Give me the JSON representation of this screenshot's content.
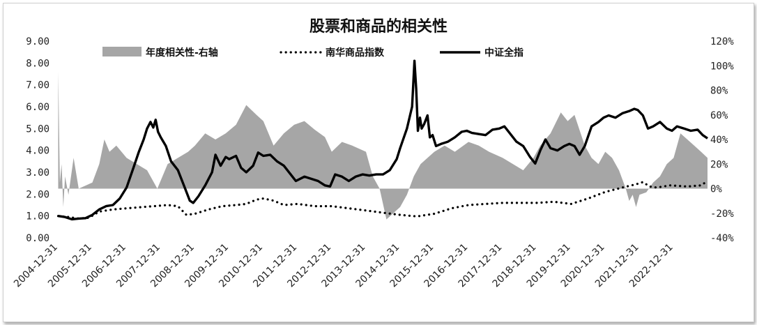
{
  "chart_data": {
    "type": "line",
    "title": "股票和商品的相关性",
    "left_axis": {
      "ylim": [
        0,
        9
      ],
      "tick_labels": [
        "0.00",
        "1.00",
        "2.00",
        "3.00",
        "4.00",
        "5.00",
        "6.00",
        "7.00",
        "8.00",
        "9.00"
      ]
    },
    "right_axis": {
      "ylim": [
        -40,
        120
      ],
      "tick_labels": [
        "-40%",
        "-20%",
        "0%",
        "20%",
        "40%",
        "60%",
        "80%",
        "100%",
        "120%"
      ]
    },
    "x_tick_labels": [
      "2004-12-31",
      "2005-12-31",
      "2006-12-31",
      "2007-12-31",
      "2008-12-31",
      "2009-12-31",
      "2010-12-31",
      "2011-12-31",
      "2012-12-31",
      "2013-12-31",
      "2014-12-31",
      "2015-12-31",
      "2016-12-31",
      "2017-12-31",
      "2018-12-31",
      "2019-12-31",
      "2020-12-31",
      "2021-12-31",
      "2022-12-31"
    ],
    "xlim": [
      2004.99,
      2023.99
    ],
    "grid": false,
    "legend_position": "top",
    "legend": [
      {
        "name": "年度相关性-右轴",
        "style": "area",
        "color": "#a6a6a6",
        "axis": "right"
      },
      {
        "name": "南华商品指数",
        "style": "dotted",
        "color": "#000000",
        "axis": "left"
      },
      {
        "name": "中证全指",
        "style": "solid",
        "color": "#000000",
        "axis": "left"
      }
    ],
    "series": [
      {
        "name": "中证全指",
        "axis": "left",
        "points": [
          [
            2005.0,
            1.0
          ],
          [
            2005.2,
            0.95
          ],
          [
            2005.4,
            0.85
          ],
          [
            2005.6,
            0.88
          ],
          [
            2005.8,
            0.9
          ],
          [
            2006.0,
            1.05
          ],
          [
            2006.2,
            1.3
          ],
          [
            2006.4,
            1.45
          ],
          [
            2006.6,
            1.5
          ],
          [
            2006.8,
            1.8
          ],
          [
            2007.0,
            2.3
          ],
          [
            2007.2,
            3.2
          ],
          [
            2007.35,
            3.9
          ],
          [
            2007.5,
            4.5
          ],
          [
            2007.6,
            5.0
          ],
          [
            2007.7,
            5.3
          ],
          [
            2007.78,
            5.05
          ],
          [
            2007.85,
            5.4
          ],
          [
            2007.92,
            4.85
          ],
          [
            2008.0,
            4.6
          ],
          [
            2008.15,
            4.2
          ],
          [
            2008.3,
            3.5
          ],
          [
            2008.5,
            3.1
          ],
          [
            2008.7,
            2.3
          ],
          [
            2008.85,
            1.7
          ],
          [
            2008.95,
            1.6
          ],
          [
            2009.1,
            1.9
          ],
          [
            2009.3,
            2.4
          ],
          [
            2009.5,
            3.0
          ],
          [
            2009.6,
            3.8
          ],
          [
            2009.75,
            3.3
          ],
          [
            2009.9,
            3.7
          ],
          [
            2010.0,
            3.6
          ],
          [
            2010.2,
            3.75
          ],
          [
            2010.35,
            3.2
          ],
          [
            2010.5,
            3.0
          ],
          [
            2010.7,
            3.3
          ],
          [
            2010.85,
            3.9
          ],
          [
            2011.0,
            3.75
          ],
          [
            2011.2,
            3.8
          ],
          [
            2011.4,
            3.5
          ],
          [
            2011.6,
            3.3
          ],
          [
            2011.8,
            2.9
          ],
          [
            2011.95,
            2.6
          ],
          [
            2012.2,
            2.8
          ],
          [
            2012.4,
            2.7
          ],
          [
            2012.6,
            2.6
          ],
          [
            2012.8,
            2.4
          ],
          [
            2012.95,
            2.35
          ],
          [
            2013.1,
            2.9
          ],
          [
            2013.3,
            2.8
          ],
          [
            2013.5,
            2.6
          ],
          [
            2013.7,
            2.8
          ],
          [
            2013.9,
            2.9
          ],
          [
            2014.1,
            2.85
          ],
          [
            2014.3,
            2.9
          ],
          [
            2014.5,
            2.9
          ],
          [
            2014.7,
            3.1
          ],
          [
            2014.9,
            3.6
          ],
          [
            2015.0,
            4.1
          ],
          [
            2015.2,
            5.0
          ],
          [
            2015.35,
            6.0
          ],
          [
            2015.42,
            8.1
          ],
          [
            2015.47,
            6.8
          ],
          [
            2015.52,
            4.9
          ],
          [
            2015.58,
            5.5
          ],
          [
            2015.63,
            5.0
          ],
          [
            2015.7,
            5.2
          ],
          [
            2015.8,
            5.6
          ],
          [
            2015.87,
            4.6
          ],
          [
            2015.95,
            4.7
          ],
          [
            2016.05,
            4.2
          ],
          [
            2016.2,
            4.3
          ],
          [
            2016.4,
            4.4
          ],
          [
            2016.6,
            4.6
          ],
          [
            2016.8,
            4.85
          ],
          [
            2016.95,
            4.9
          ],
          [
            2017.1,
            4.8
          ],
          [
            2017.3,
            4.75
          ],
          [
            2017.5,
            4.7
          ],
          [
            2017.7,
            4.95
          ],
          [
            2017.9,
            5.0
          ],
          [
            2018.05,
            5.1
          ],
          [
            2018.2,
            4.8
          ],
          [
            2018.4,
            4.4
          ],
          [
            2018.6,
            4.2
          ],
          [
            2018.8,
            3.7
          ],
          [
            2018.95,
            3.4
          ],
          [
            2019.1,
            4.0
          ],
          [
            2019.25,
            4.5
          ],
          [
            2019.4,
            4.1
          ],
          [
            2019.6,
            4.0
          ],
          [
            2019.8,
            4.2
          ],
          [
            2019.95,
            4.3
          ],
          [
            2020.1,
            4.2
          ],
          [
            2020.25,
            3.8
          ],
          [
            2020.4,
            4.2
          ],
          [
            2020.6,
            5.1
          ],
          [
            2020.8,
            5.3
          ],
          [
            2020.95,
            5.5
          ],
          [
            2021.1,
            5.6
          ],
          [
            2021.3,
            5.5
          ],
          [
            2021.5,
            5.7
          ],
          [
            2021.7,
            5.8
          ],
          [
            2021.85,
            5.9
          ],
          [
            2021.95,
            5.85
          ],
          [
            2022.1,
            5.6
          ],
          [
            2022.25,
            5.0
          ],
          [
            2022.4,
            5.1
          ],
          [
            2022.6,
            5.3
          ],
          [
            2022.8,
            5.0
          ],
          [
            2022.95,
            4.9
          ],
          [
            2023.1,
            5.1
          ],
          [
            2023.3,
            5.0
          ],
          [
            2023.5,
            4.9
          ],
          [
            2023.7,
            4.95
          ],
          [
            2023.85,
            4.7
          ],
          [
            2023.99,
            4.55
          ]
        ]
      },
      {
        "name": "南华商品指数",
        "axis": "left",
        "points": [
          [
            2005.0,
            1.0
          ],
          [
            2005.3,
            0.95
          ],
          [
            2005.6,
            0.88
          ],
          [
            2005.9,
            0.92
          ],
          [
            2006.2,
            1.2
          ],
          [
            2006.6,
            1.3
          ],
          [
            2007.0,
            1.35
          ],
          [
            2007.4,
            1.4
          ],
          [
            2007.8,
            1.45
          ],
          [
            2008.2,
            1.5
          ],
          [
            2008.5,
            1.45
          ],
          [
            2008.75,
            1.05
          ],
          [
            2009.0,
            1.1
          ],
          [
            2009.4,
            1.3
          ],
          [
            2009.8,
            1.45
          ],
          [
            2010.2,
            1.5
          ],
          [
            2010.5,
            1.55
          ],
          [
            2010.8,
            1.75
          ],
          [
            2011.0,
            1.8
          ],
          [
            2011.3,
            1.7
          ],
          [
            2011.6,
            1.5
          ],
          [
            2012.0,
            1.55
          ],
          [
            2012.5,
            1.45
          ],
          [
            2013.0,
            1.45
          ],
          [
            2013.5,
            1.35
          ],
          [
            2014.0,
            1.25
          ],
          [
            2014.5,
            1.15
          ],
          [
            2015.0,
            1.05
          ],
          [
            2015.5,
            0.98
          ],
          [
            2016.0,
            1.1
          ],
          [
            2016.5,
            1.35
          ],
          [
            2017.0,
            1.5
          ],
          [
            2017.5,
            1.55
          ],
          [
            2018.0,
            1.6
          ],
          [
            2018.5,
            1.6
          ],
          [
            2019.0,
            1.6
          ],
          [
            2019.5,
            1.65
          ],
          [
            2020.0,
            1.55
          ],
          [
            2020.5,
            1.8
          ],
          [
            2021.0,
            2.1
          ],
          [
            2021.5,
            2.3
          ],
          [
            2021.9,
            2.45
          ],
          [
            2022.1,
            2.55
          ],
          [
            2022.3,
            2.35
          ],
          [
            2022.5,
            2.3
          ],
          [
            2022.9,
            2.4
          ],
          [
            2023.4,
            2.35
          ],
          [
            2023.8,
            2.4
          ],
          [
            2023.99,
            2.6
          ]
        ]
      },
      {
        "name": "年度相关性-右轴",
        "axis": "right",
        "points": [
          [
            2005.0,
            95
          ],
          [
            2005.05,
            5
          ],
          [
            2005.1,
            20
          ],
          [
            2005.15,
            -15
          ],
          [
            2005.2,
            10
          ],
          [
            2005.3,
            -5
          ],
          [
            2005.45,
            25
          ],
          [
            2005.6,
            0
          ],
          [
            2006.0,
            5
          ],
          [
            2006.2,
            20
          ],
          [
            2006.35,
            40
          ],
          [
            2006.5,
            30
          ],
          [
            2006.7,
            35
          ],
          [
            2007.0,
            25
          ],
          [
            2007.3,
            20
          ],
          [
            2007.6,
            15
          ],
          [
            2007.9,
            0
          ],
          [
            2008.2,
            20
          ],
          [
            2008.5,
            25
          ],
          [
            2008.8,
            30
          ],
          [
            2009.0,
            35
          ],
          [
            2009.3,
            45
          ],
          [
            2009.6,
            40
          ],
          [
            2009.9,
            45
          ],
          [
            2010.2,
            52
          ],
          [
            2010.5,
            68
          ],
          [
            2010.8,
            60
          ],
          [
            2011.0,
            55
          ],
          [
            2011.3,
            35
          ],
          [
            2011.6,
            45
          ],
          [
            2011.9,
            52
          ],
          [
            2012.2,
            55
          ],
          [
            2012.5,
            48
          ],
          [
            2012.8,
            42
          ],
          [
            2013.0,
            30
          ],
          [
            2013.3,
            38
          ],
          [
            2013.6,
            35
          ],
          [
            2014.0,
            30
          ],
          [
            2014.2,
            10
          ],
          [
            2014.4,
            0
          ],
          [
            2014.6,
            -25
          ],
          [
            2014.8,
            -20
          ],
          [
            2015.0,
            -15
          ],
          [
            2015.2,
            -5
          ],
          [
            2015.4,
            10
          ],
          [
            2015.6,
            20
          ],
          [
            2015.8,
            25
          ],
          [
            2016.0,
            30
          ],
          [
            2016.3,
            35
          ],
          [
            2016.6,
            30
          ],
          [
            2017.0,
            38
          ],
          [
            2017.3,
            35
          ],
          [
            2017.6,
            30
          ],
          [
            2018.0,
            25
          ],
          [
            2018.3,
            20
          ],
          [
            2018.6,
            15
          ],
          [
            2018.9,
            25
          ],
          [
            2019.1,
            35
          ],
          [
            2019.4,
            45
          ],
          [
            2019.7,
            62
          ],
          [
            2019.9,
            55
          ],
          [
            2020.1,
            60
          ],
          [
            2020.4,
            35
          ],
          [
            2020.6,
            25
          ],
          [
            2020.8,
            20
          ],
          [
            2021.0,
            30
          ],
          [
            2021.2,
            25
          ],
          [
            2021.4,
            15
          ],
          [
            2021.6,
            0
          ],
          [
            2021.7,
            -10
          ],
          [
            2021.8,
            -5
          ],
          [
            2021.9,
            -15
          ],
          [
            2022.0,
            -5
          ],
          [
            2022.2,
            -3
          ],
          [
            2022.4,
            5
          ],
          [
            2022.6,
            10
          ],
          [
            2022.8,
            20
          ],
          [
            2023.0,
            25
          ],
          [
            2023.2,
            45
          ],
          [
            2023.4,
            40
          ],
          [
            2023.6,
            35
          ],
          [
            2023.8,
            30
          ],
          [
            2023.99,
            25
          ]
        ]
      }
    ]
  }
}
